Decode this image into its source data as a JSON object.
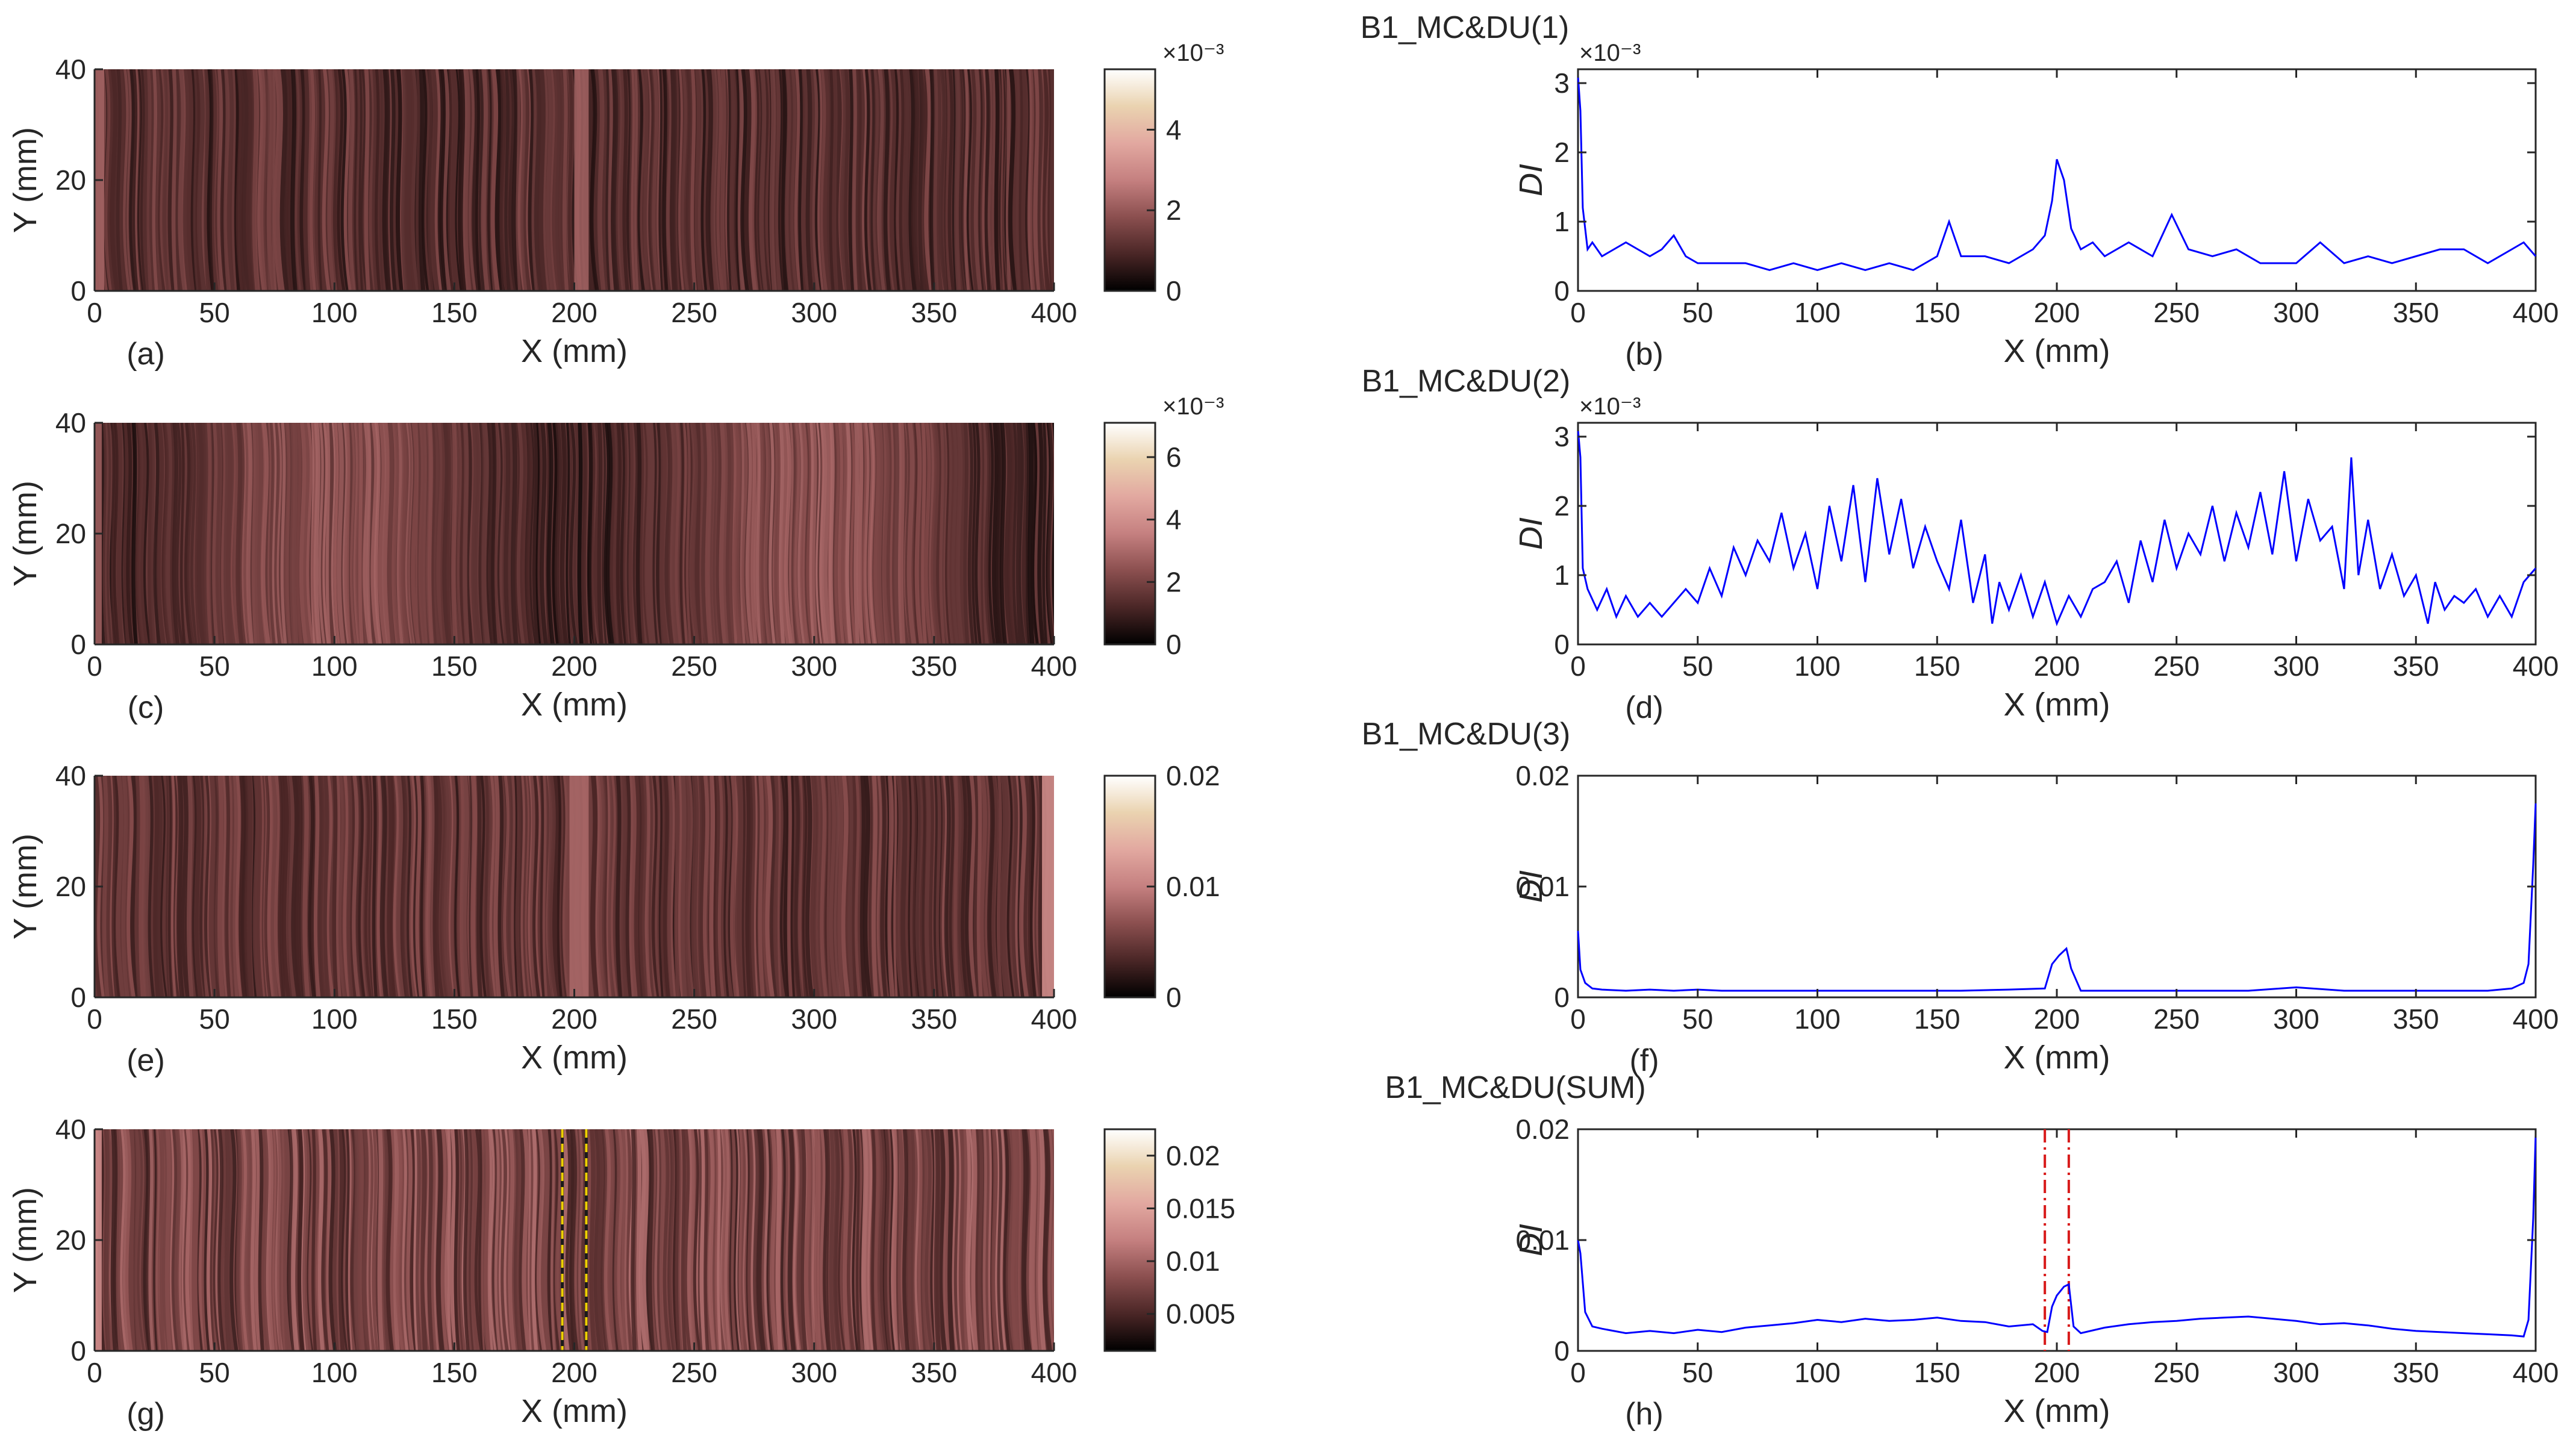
{
  "figure": {
    "titles": [
      "B1_MC&DU(1)",
      "B1_MC&DU(2)",
      "B1_MC&DU(3)",
      "B1_MC&DU(SUM)"
    ]
  },
  "colors": {
    "line": "#0000ff",
    "axis": "#262626",
    "marker_left": "#d81b1b",
    "marker_right": "#d81b1b",
    "map_marker_dark": "#1a1a1a",
    "map_marker_yellow": "#f0d000",
    "colormap": [
      "#000000",
      "#4a2626",
      "#8b4f4f",
      "#c58080",
      "#e2a8a0",
      "#ead3b0",
      "#ffffff"
    ]
  },
  "chart_data": [
    {
      "id": "a",
      "panel_label": "(a)",
      "type": "heatmap",
      "title": "B1_MC&DU(1)",
      "xlabel": "X (mm)",
      "ylabel": "Y (mm)",
      "xlim": [
        0,
        400
      ],
      "ylim": [
        0,
        40
      ],
      "xticks": [
        "0",
        "50",
        "100",
        "150",
        "200",
        "250",
        "300",
        "350",
        "400"
      ],
      "yticks": [
        "0",
        "20",
        "40"
      ],
      "colorbar": {
        "min": 0,
        "max": 0.0055,
        "ticks": [
          "0",
          "2",
          "4"
        ],
        "tick_values": [
          0,
          0.002,
          0.004
        ],
        "exponent": "×10⁻³"
      },
      "field": {
        "base": 0.0011,
        "variation": 0.0007,
        "peak_x": [
          200,
          206
        ],
        "peak_value": 0.0022,
        "edge_value": 0.0022,
        "edge_x": [
          0,
          4
        ]
      }
    },
    {
      "id": "b",
      "panel_label": "(b)",
      "type": "line",
      "xlabel": "X (mm)",
      "ylabel": "DI",
      "xlim": [
        0,
        400
      ],
      "ylim": [
        0,
        0.0032
      ],
      "xticks": [
        "0",
        "50",
        "100",
        "150",
        "200",
        "250",
        "300",
        "350",
        "400"
      ],
      "yticks": [
        "0",
        "1",
        "2",
        "3"
      ],
      "ytick_values": [
        0,
        0.001,
        0.002,
        0.003
      ],
      "exponent": "×10⁻³",
      "series": [
        {
          "name": "DI",
          "x": [
            0,
            1,
            2,
            4,
            6,
            10,
            15,
            20,
            25,
            30,
            35,
            40,
            45,
            50,
            55,
            60,
            70,
            80,
            90,
            100,
            110,
            120,
            130,
            140,
            150,
            155,
            160,
            170,
            180,
            190,
            195,
            198,
            200,
            203,
            206,
            210,
            215,
            220,
            230,
            240,
            248,
            255,
            265,
            275,
            285,
            300,
            310,
            320,
            330,
            340,
            350,
            360,
            370,
            380,
            390,
            395,
            400
          ],
          "values": [
            0.0031,
            0.0026,
            0.0012,
            0.0006,
            0.0007,
            0.0005,
            0.0006,
            0.0007,
            0.0006,
            0.0005,
            0.0006,
            0.0008,
            0.0005,
            0.0004,
            0.0004,
            0.0004,
            0.0004,
            0.0003,
            0.0004,
            0.0003,
            0.0004,
            0.0003,
            0.0004,
            0.0003,
            0.0005,
            0.001,
            0.0005,
            0.0005,
            0.0004,
            0.0006,
            0.0008,
            0.0013,
            0.0019,
            0.0016,
            0.0009,
            0.0006,
            0.0007,
            0.0005,
            0.0007,
            0.0005,
            0.0011,
            0.0006,
            0.0005,
            0.0006,
            0.0004,
            0.0004,
            0.0007,
            0.0004,
            0.0005,
            0.0004,
            0.0005,
            0.0006,
            0.0006,
            0.0004,
            0.0006,
            0.0007,
            0.0005
          ]
        }
      ]
    },
    {
      "id": "c",
      "panel_label": "(c)",
      "type": "heatmap",
      "title": "B1_MC&DU(2)",
      "xlabel": "X (mm)",
      "ylabel": "Y (mm)",
      "xlim": [
        0,
        400
      ],
      "ylim": [
        0,
        40
      ],
      "xticks": [
        "0",
        "50",
        "100",
        "150",
        "200",
        "250",
        "300",
        "350",
        "400"
      ],
      "yticks": [
        "0",
        "20",
        "40"
      ],
      "colorbar": {
        "min": 0,
        "max": 0.0071,
        "ticks": [
          "0",
          "2",
          "4",
          "6"
        ],
        "tick_values": [
          0,
          0.002,
          0.004,
          0.006
        ],
        "exponent": "×10⁻³"
      },
      "field": {
        "base": 0.0017,
        "variation": 0.0011,
        "peak_x": [],
        "peak_value": 0,
        "edge_value": 0.0027,
        "edge_x": [
          0,
          3
        ]
      }
    },
    {
      "id": "d",
      "panel_label": "(d)",
      "type": "line",
      "xlabel": "X (mm)",
      "ylabel": "DI",
      "xlim": [
        0,
        400
      ],
      "ylim": [
        0,
        0.0032
      ],
      "xticks": [
        "0",
        "50",
        "100",
        "150",
        "200",
        "250",
        "300",
        "350",
        "400"
      ],
      "yticks": [
        "0",
        "1",
        "2",
        "3"
      ],
      "ytick_values": [
        0,
        0.001,
        0.002,
        0.003
      ],
      "exponent": "×10⁻³",
      "series": [
        {
          "name": "DI",
          "x": [
            0,
            1,
            2,
            4,
            8,
            12,
            16,
            20,
            25,
            30,
            35,
            40,
            45,
            50,
            55,
            60,
            65,
            70,
            75,
            80,
            85,
            90,
            95,
            100,
            105,
            110,
            115,
            120,
            125,
            130,
            135,
            140,
            145,
            150,
            155,
            160,
            165,
            170,
            173,
            176,
            180,
            185,
            190,
            195,
            200,
            205,
            210,
            215,
            220,
            225,
            230,
            235,
            240,
            245,
            250,
            255,
            260,
            265,
            270,
            275,
            280,
            285,
            290,
            295,
            300,
            305,
            310,
            315,
            320,
            323,
            326,
            330,
            335,
            340,
            345,
            350,
            355,
            358,
            362,
            366,
            370,
            375,
            380,
            385,
            390,
            395,
            400
          ],
          "values": [
            0.0031,
            0.0027,
            0.0011,
            0.0008,
            0.0005,
            0.0008,
            0.0004,
            0.0007,
            0.0004,
            0.0006,
            0.0004,
            0.0006,
            0.0008,
            0.0006,
            0.0011,
            0.0007,
            0.0014,
            0.001,
            0.0015,
            0.0012,
            0.0019,
            0.0011,
            0.0016,
            0.0008,
            0.002,
            0.0012,
            0.0023,
            0.0009,
            0.0024,
            0.0013,
            0.0021,
            0.0011,
            0.0017,
            0.0012,
            0.0008,
            0.0018,
            0.0006,
            0.0013,
            0.0003,
            0.0009,
            0.0005,
            0.001,
            0.0004,
            0.0009,
            0.0003,
            0.0007,
            0.0004,
            0.0008,
            0.0009,
            0.0012,
            0.0006,
            0.0015,
            0.0009,
            0.0018,
            0.0011,
            0.0016,
            0.0013,
            0.002,
            0.0012,
            0.0019,
            0.0014,
            0.0022,
            0.0013,
            0.0025,
            0.0012,
            0.0021,
            0.0015,
            0.0017,
            0.0008,
            0.0027,
            0.001,
            0.0018,
            0.0008,
            0.0013,
            0.0007,
            0.001,
            0.0003,
            0.0009,
            0.0005,
            0.0007,
            0.0006,
            0.0008,
            0.0004,
            0.0007,
            0.0004,
            0.0009,
            0.0011
          ]
        }
      ]
    },
    {
      "id": "e",
      "panel_label": "(e)",
      "type": "heatmap",
      "title": "B1_MC&DU(3)",
      "xlabel": "X (mm)",
      "ylabel": "Y (mm)",
      "xlim": [
        0,
        400
      ],
      "ylim": [
        0,
        40
      ],
      "xticks": [
        "0",
        "50",
        "100",
        "150",
        "200",
        "250",
        "300",
        "350",
        "400"
      ],
      "yticks": [
        "0",
        "20",
        "40"
      ],
      "colorbar": {
        "min": 0,
        "max": 0.02,
        "ticks": [
          "0",
          "0.01",
          "0.02"
        ],
        "tick_values": [
          0,
          0.01,
          0.02
        ],
        "exponent": ""
      },
      "field": {
        "base": 0.0045,
        "variation": 0.0025,
        "peak_x": [
          198,
          206
        ],
        "peak_value": 0.0085,
        "edge_value": 0.011,
        "edge_x": [
          395,
          400
        ]
      }
    },
    {
      "id": "f",
      "panel_label": "(f)",
      "type": "line",
      "xlabel": "X (mm)",
      "ylabel": "DI",
      "xlim": [
        0,
        400
      ],
      "ylim": [
        0,
        0.02
      ],
      "xticks": [
        "0",
        "50",
        "100",
        "150",
        "200",
        "250",
        "300",
        "350",
        "400"
      ],
      "yticks": [
        "0",
        "0.01",
        "0.02"
      ],
      "ytick_values": [
        0,
        0.01,
        0.02
      ],
      "exponent": "",
      "series": [
        {
          "name": "DI",
          "x": [
            0,
            1,
            3,
            6,
            10,
            20,
            30,
            40,
            50,
            60,
            80,
            100,
            120,
            140,
            160,
            180,
            195,
            198,
            201,
            204,
            206,
            210,
            220,
            240,
            260,
            280,
            300,
            320,
            340,
            360,
            380,
            390,
            395,
            397,
            399,
            400
          ],
          "values": [
            0.006,
            0.0025,
            0.0013,
            0.0008,
            0.0007,
            0.0006,
            0.0007,
            0.0006,
            0.0007,
            0.0006,
            0.0006,
            0.0006,
            0.0006,
            0.0006,
            0.0006,
            0.0007,
            0.0008,
            0.003,
            0.0038,
            0.0044,
            0.0026,
            0.0006,
            0.0006,
            0.0006,
            0.0006,
            0.0006,
            0.0009,
            0.0006,
            0.0006,
            0.0006,
            0.0006,
            0.0008,
            0.0013,
            0.003,
            0.012,
            0.0175
          ]
        }
      ]
    },
    {
      "id": "g",
      "panel_label": "(g)",
      "type": "heatmap",
      "title": "B1_MC&DU(SUM)",
      "xlabel": "X (mm)",
      "ylabel": "Y (mm)",
      "xlim": [
        0,
        400
      ],
      "ylim": [
        0,
        40
      ],
      "xticks": [
        "0",
        "50",
        "100",
        "150",
        "200",
        "250",
        "300",
        "350",
        "400"
      ],
      "yticks": [
        "0",
        "20",
        "40"
      ],
      "colorbar": {
        "min": 0.0015,
        "max": 0.0225,
        "ticks": [
          "0.005",
          "0.01",
          "0.015",
          "0.02"
        ],
        "tick_values": [
          0.005,
          0.01,
          0.015,
          0.02
        ],
        "exponent": ""
      },
      "field": {
        "base": 0.0075,
        "variation": 0.0035,
        "peak_x": [],
        "peak_value": 0,
        "edge_value": 0.013,
        "edge_x": [
          0,
          3
        ]
      },
      "markers_x": [
        195,
        205
      ]
    },
    {
      "id": "h",
      "panel_label": "(h)",
      "type": "line",
      "xlabel": "X (mm)",
      "ylabel": "DI",
      "xlim": [
        0,
        400
      ],
      "ylim": [
        0,
        0.02
      ],
      "xticks": [
        "0",
        "50",
        "100",
        "150",
        "200",
        "250",
        "300",
        "350",
        "400"
      ],
      "yticks": [
        "0",
        "0.01",
        "0.02"
      ],
      "ytick_values": [
        0,
        0.01,
        0.02
      ],
      "exponent": "",
      "markers_x": [
        195,
        205
      ],
      "series": [
        {
          "name": "DI",
          "x": [
            0,
            1,
            3,
            6,
            10,
            20,
            30,
            40,
            50,
            60,
            70,
            80,
            90,
            100,
            110,
            120,
            130,
            140,
            150,
            160,
            170,
            180,
            190,
            194,
            196,
            198,
            200,
            203,
            205,
            207,
            210,
            220,
            230,
            240,
            250,
            260,
            270,
            280,
            290,
            300,
            310,
            320,
            330,
            340,
            350,
            360,
            370,
            380,
            390,
            395,
            397,
            399,
            400
          ],
          "values": [
            0.01,
            0.0088,
            0.0035,
            0.0022,
            0.002,
            0.0016,
            0.0018,
            0.0016,
            0.0019,
            0.0017,
            0.0021,
            0.0023,
            0.0025,
            0.0028,
            0.0026,
            0.0029,
            0.0027,
            0.0028,
            0.003,
            0.0027,
            0.0026,
            0.0022,
            0.0024,
            0.0018,
            0.0017,
            0.004,
            0.005,
            0.0058,
            0.006,
            0.0022,
            0.0016,
            0.0021,
            0.0024,
            0.0026,
            0.0027,
            0.0029,
            0.003,
            0.0031,
            0.0029,
            0.0027,
            0.0024,
            0.0025,
            0.0023,
            0.002,
            0.0018,
            0.0017,
            0.0016,
            0.0015,
            0.0014,
            0.0013,
            0.0028,
            0.012,
            0.0195
          ]
        }
      ]
    }
  ]
}
